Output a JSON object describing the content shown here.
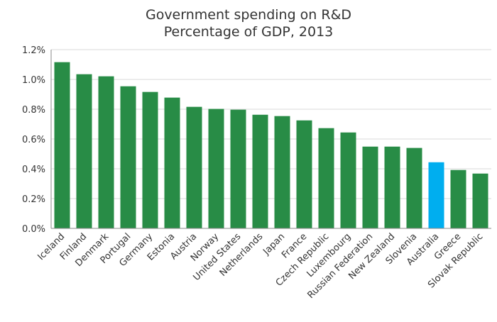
{
  "chart_data": {
    "type": "bar",
    "title": "Government spending on R&D",
    "subtitle": "Percentage of GDP, 2013",
    "xlabel": "",
    "ylabel": "",
    "ylim": [
      0,
      1.2
    ],
    "yticks": [
      0,
      0.2,
      0.4,
      0.6,
      0.8,
      1.0,
      1.2
    ],
    "ytick_labels": [
      "0.0%",
      "0.2%",
      "0.4%",
      "0.6%",
      "0.8%",
      "1.0%",
      "1.2%"
    ],
    "grid": true,
    "categories": [
      "Iceland",
      "Finland",
      "Denmark",
      "Portugal",
      "Germany",
      "Estonia",
      "Austria",
      "Norway",
      "United States",
      "Netherlands",
      "Japan",
      "France",
      "Czech Republic",
      "Luxembourg",
      "Russian Federation",
      "New Zealand",
      "Slovenia",
      "Australia",
      "Greece",
      "Slovak Republic"
    ],
    "values": [
      1.116,
      1.035,
      1.021,
      0.954,
      0.916,
      0.878,
      0.816,
      0.802,
      0.797,
      0.763,
      0.754,
      0.725,
      0.673,
      0.644,
      0.549,
      0.549,
      0.54,
      0.444,
      0.392,
      0.368
    ],
    "highlight": "Australia",
    "colors": {
      "bar": "#288c46",
      "highlight": "#00aeef",
      "grid": "#d9d9d9",
      "axis": "#888888"
    }
  }
}
